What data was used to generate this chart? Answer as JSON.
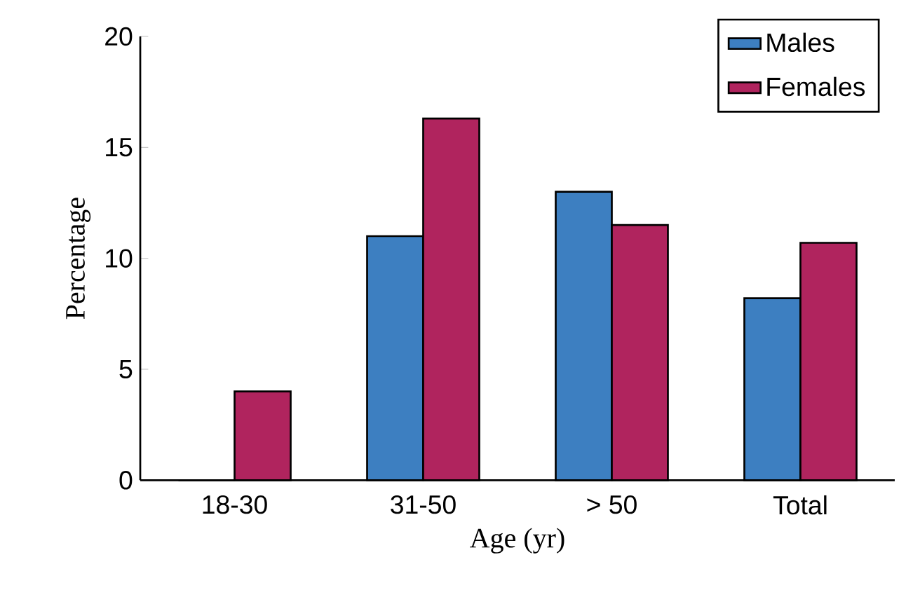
{
  "chart_data": {
    "type": "bar",
    "xlabel": "Age (yr)",
    "ylabel": "Percentage",
    "categories": [
      "18-30",
      "31-50",
      "> 50",
      "Total"
    ],
    "series": [
      {
        "name": "Males",
        "color": "#3d7fc1",
        "values": [
          0,
          11,
          13,
          8.2
        ]
      },
      {
        "name": "Females",
        "color": "#b0245e",
        "values": [
          4,
          16.3,
          11.5,
          10.7
        ]
      }
    ],
    "ylim": [
      0,
      20
    ],
    "yticks": [
      0,
      5,
      10,
      15,
      20
    ],
    "grid": false,
    "legend": "top right"
  }
}
